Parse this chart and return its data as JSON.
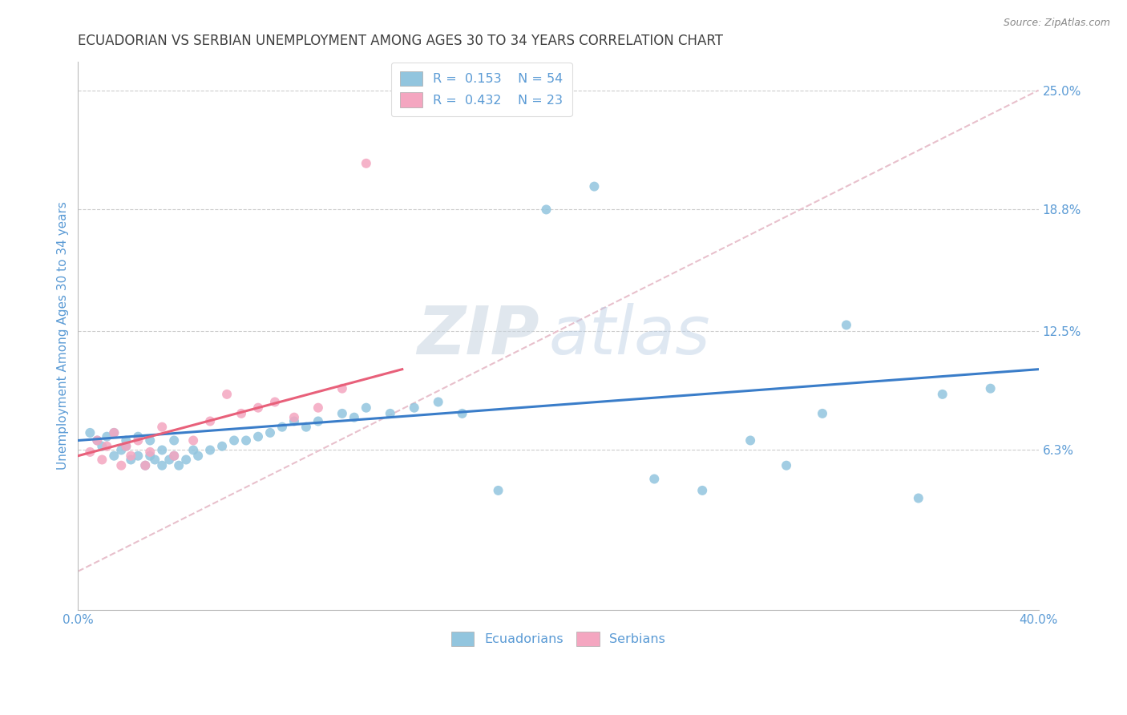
{
  "title": "ECUADORIAN VS SERBIAN UNEMPLOYMENT AMONG AGES 30 TO 34 YEARS CORRELATION CHART",
  "source_text": "Source: ZipAtlas.com",
  "ylabel": "Unemployment Among Ages 30 to 34 years",
  "xlim": [
    0.0,
    0.4
  ],
  "ylim": [
    -0.02,
    0.265
  ],
  "ytick_positions": [
    0.0,
    0.063,
    0.125,
    0.188,
    0.25
  ],
  "ytick_labels": [
    "",
    "6.3%",
    "12.5%",
    "18.8%",
    "25.0%"
  ],
  "xtick_positions": [
    0.0,
    0.4
  ],
  "xtick_labels": [
    "0.0%",
    "40.0%"
  ],
  "legend_r1": "R =  0.153",
  "legend_n1": "N = 54",
  "legend_r2": "R =  0.432",
  "legend_n2": "N = 23",
  "blue_color": "#92c5de",
  "pink_color": "#f4a6c0",
  "line_blue": "#3a7dc9",
  "line_pink": "#e8607a",
  "diag_color": "#e8c0cc",
  "watermark_zip": "ZIP",
  "watermark_atlas": "atlas",
  "background_color": "#ffffff",
  "grid_color": "#cccccc",
  "title_color": "#404040",
  "axis_label_color": "#5b9bd5",
  "blue_scatter_x": [
    0.005,
    0.008,
    0.01,
    0.012,
    0.015,
    0.015,
    0.018,
    0.02,
    0.02,
    0.022,
    0.025,
    0.025,
    0.028,
    0.03,
    0.03,
    0.032,
    0.035,
    0.035,
    0.038,
    0.04,
    0.04,
    0.042,
    0.045,
    0.048,
    0.05,
    0.055,
    0.06,
    0.065,
    0.07,
    0.075,
    0.08,
    0.085,
    0.09,
    0.095,
    0.1,
    0.11,
    0.115,
    0.12,
    0.13,
    0.14,
    0.15,
    0.16,
    0.175,
    0.195,
    0.215,
    0.24,
    0.26,
    0.28,
    0.295,
    0.31,
    0.32,
    0.35,
    0.36,
    0.38
  ],
  "blue_scatter_y": [
    0.072,
    0.068,
    0.065,
    0.07,
    0.072,
    0.06,
    0.063,
    0.065,
    0.068,
    0.058,
    0.06,
    0.07,
    0.055,
    0.06,
    0.068,
    0.058,
    0.055,
    0.063,
    0.058,
    0.06,
    0.068,
    0.055,
    0.058,
    0.063,
    0.06,
    0.063,
    0.065,
    0.068,
    0.068,
    0.07,
    0.072,
    0.075,
    0.078,
    0.075,
    0.078,
    0.082,
    0.08,
    0.085,
    0.082,
    0.085,
    0.088,
    0.082,
    0.042,
    0.188,
    0.2,
    0.048,
    0.042,
    0.068,
    0.055,
    0.082,
    0.128,
    0.038,
    0.092,
    0.095
  ],
  "pink_scatter_x": [
    0.005,
    0.008,
    0.01,
    0.012,
    0.015,
    0.018,
    0.02,
    0.022,
    0.025,
    0.028,
    0.03,
    0.035,
    0.04,
    0.048,
    0.055,
    0.062,
    0.068,
    0.075,
    0.082,
    0.09,
    0.1,
    0.11,
    0.12
  ],
  "pink_scatter_y": [
    0.062,
    0.068,
    0.058,
    0.065,
    0.072,
    0.055,
    0.065,
    0.06,
    0.068,
    0.055,
    0.062,
    0.075,
    0.06,
    0.068,
    0.078,
    0.092,
    0.082,
    0.085,
    0.088,
    0.08,
    0.085,
    0.095,
    0.212
  ],
  "blue_trend_x": [
    0.0,
    0.4
  ],
  "blue_trend_y": [
    0.068,
    0.105
  ],
  "pink_trend_x": [
    0.0,
    0.135
  ],
  "pink_trend_y": [
    0.06,
    0.105
  ]
}
